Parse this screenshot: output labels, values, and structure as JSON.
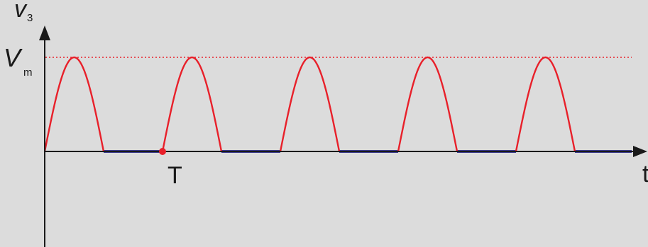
{
  "labels": {
    "y_axis_letter": "v",
    "y_axis_subscript": "3",
    "vm_letter": "V",
    "vm_subscript": "m",
    "period": "T",
    "x_axis": "t"
  },
  "waveform": {
    "pulse_count": 5,
    "pulse_fraction_of_period": 0.5,
    "amplitude_label": "Vm"
  },
  "colors": {
    "background": "#dcdcdc",
    "axis": "#1a1a1a",
    "pulse": "#e8202a",
    "zero_segment": "#3b3b8f",
    "vm_dotted": "#e8202a",
    "period_marker": "#e8202a"
  }
}
